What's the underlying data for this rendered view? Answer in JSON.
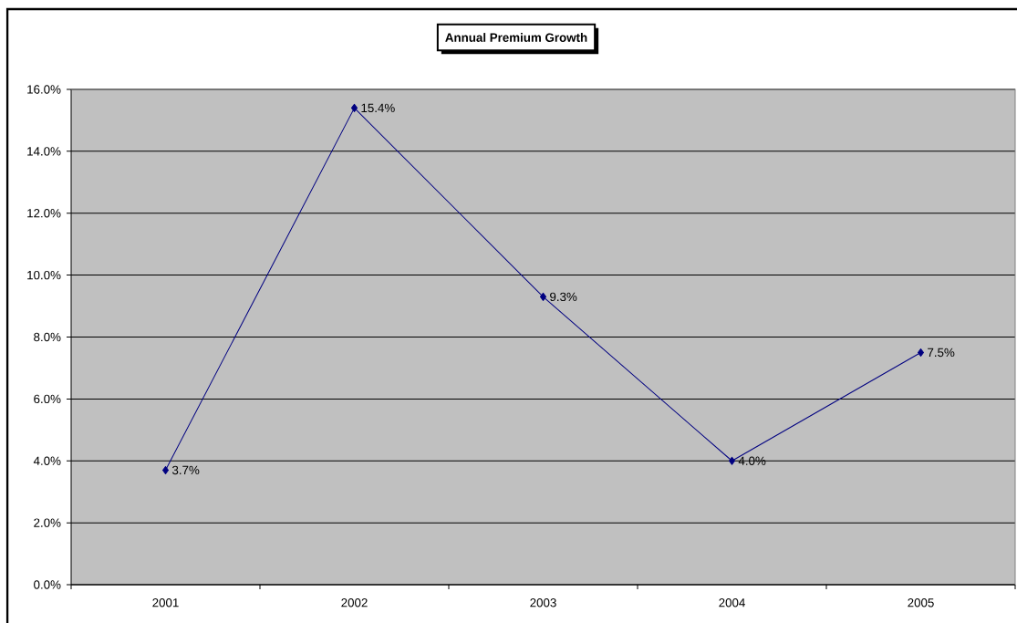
{
  "chart_data": {
    "type": "line",
    "title": "Annual Premium Growth",
    "categories": [
      "2001",
      "2002",
      "2003",
      "2004",
      "2005"
    ],
    "values": [
      3.7,
      15.4,
      9.3,
      4.0,
      7.5
    ],
    "color": "#000080",
    "value_labels": [
      "3.7%",
      "15.4%",
      "9.3%",
      "4.0%",
      "7.5%"
    ],
    "ylim": [
      0,
      16
    ],
    "yticks": [
      {
        "value": 0,
        "label": "0.0%"
      },
      {
        "value": 2,
        "label": "2.0%"
      },
      {
        "value": 4,
        "label": "4.0%"
      },
      {
        "value": 6,
        "label": "6.0%"
      },
      {
        "value": 8,
        "label": "8.0%"
      },
      {
        "value": 10,
        "label": "10.0%"
      },
      {
        "value": 12,
        "label": "12.0%"
      },
      {
        "value": 14,
        "label": "14.0%"
      },
      {
        "value": 16,
        "label": "16.0%"
      }
    ],
    "grid": "y",
    "marker": "diamond",
    "line_style": "solid"
  }
}
